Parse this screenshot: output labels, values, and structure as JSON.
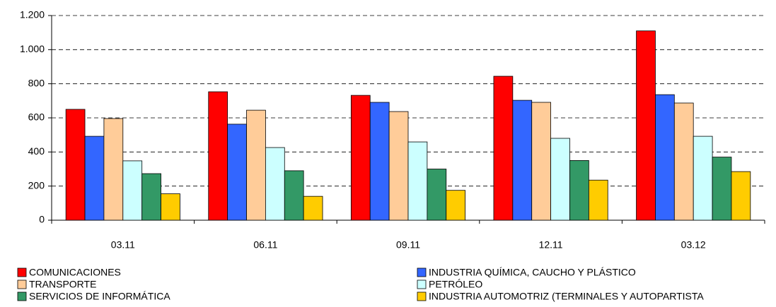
{
  "chart_data": {
    "type": "bar",
    "categories": [
      "03.11",
      "06.11",
      "09.11",
      "12.11",
      "03.12"
    ],
    "series": [
      {
        "name": "COMUNICACIONES",
        "color": "#ff0000",
        "values": [
          650,
          753,
          732,
          844,
          1110
        ]
      },
      {
        "name": "INDUSTRIA QUÍMICA, CAUCHO Y PLÁSTICO",
        "color": "#3366ff",
        "values": [
          492,
          563,
          691,
          703,
          736
        ]
      },
      {
        "name": "TRANSPORTE",
        "color": "#ffcc99",
        "values": [
          596,
          645,
          637,
          691,
          687
        ]
      },
      {
        "name": "PETRÓLEO",
        "color": "#ccffff",
        "values": [
          348,
          426,
          459,
          480,
          492
        ]
      },
      {
        "name": "SERVICIOS DE INFORMÁTICA",
        "color": "#339966",
        "values": [
          273,
          290,
          300,
          350,
          370
        ]
      },
      {
        "name": "INDUSTRIA AUTOMOTRIZ (TERMINALES Y AUTOPARTISTA",
        "color": "#ffcc00",
        "values": [
          155,
          140,
          175,
          235,
          285
        ]
      }
    ],
    "ylim": [
      0,
      1200
    ],
    "yticks": [
      0,
      200,
      400,
      600,
      800,
      {
        "value": 1000,
        "label": "1.000"
      },
      {
        "value": 1200,
        "label": "1.200"
      }
    ],
    "grid": true
  }
}
